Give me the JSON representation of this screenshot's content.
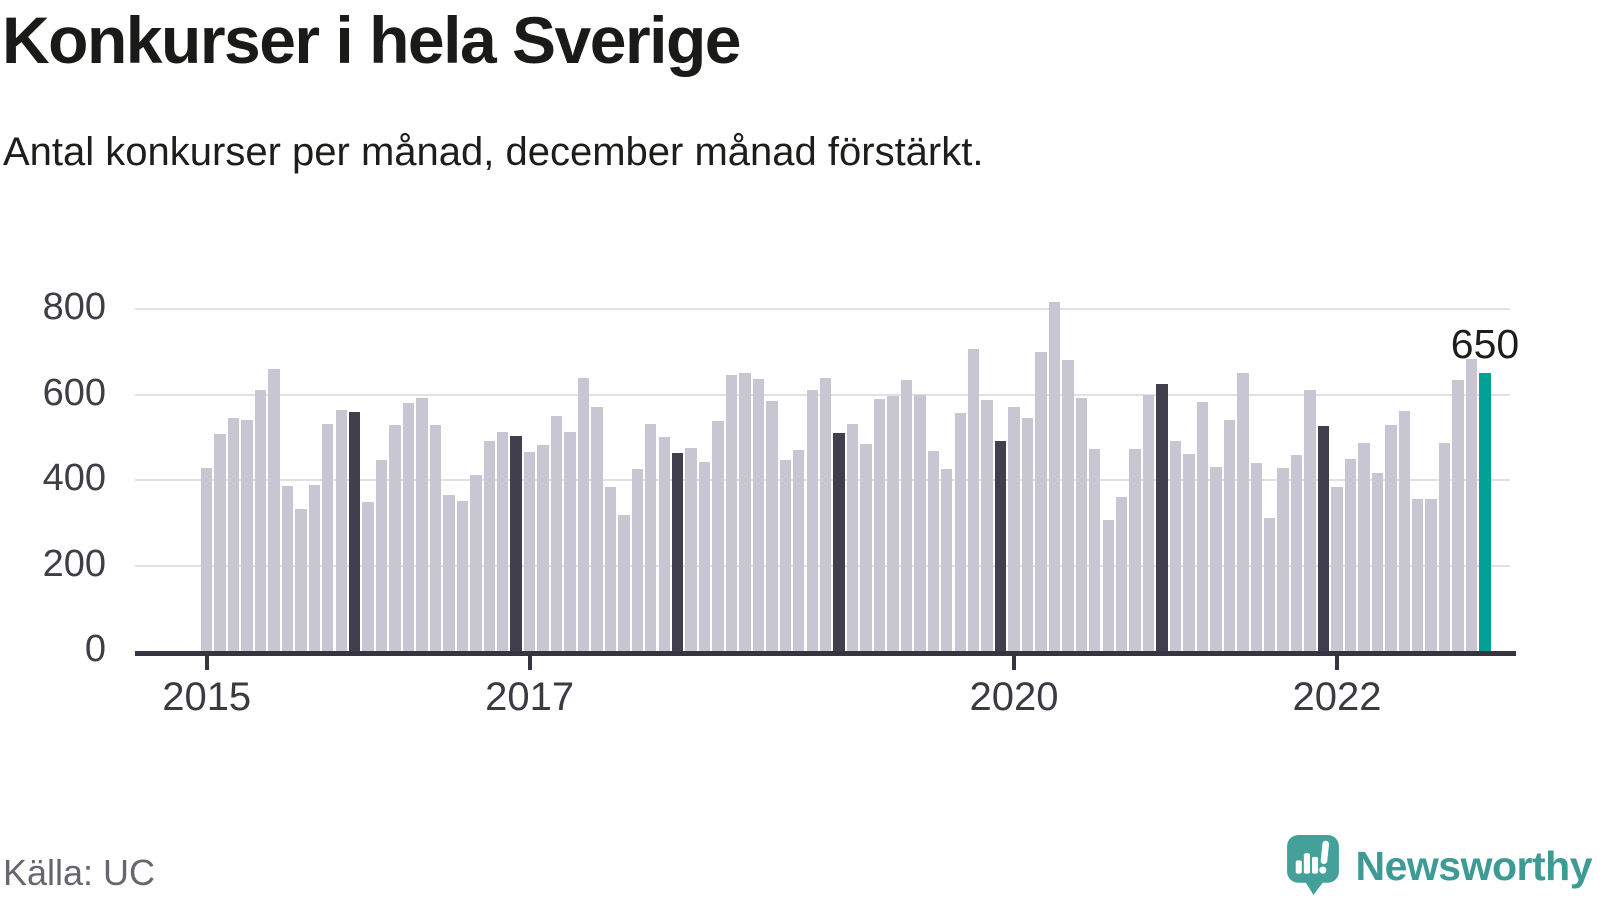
{
  "title": "Konkurser i hela Sverige",
  "subtitle": "Antal konkurser per månad, december månad förstärkt.",
  "source": "Källa: UC",
  "brand": {
    "name": "Newsworthy"
  },
  "colors": {
    "bar": "#c9c6d3",
    "bar_december": "#413f4e",
    "bar_latest": "#00a296",
    "gridline": "#e1e0e4",
    "axis": "#35343f",
    "text": "#1d1d1b",
    "muted_text": "#67666f",
    "brand_teal": "#3d9a94"
  },
  "chart_data": {
    "type": "bar",
    "title": "Konkurser i hela Sverige",
    "subtitle": "Antal konkurser per månad, december månad förstärkt.",
    "xlabel": "",
    "ylabel": "",
    "x_start": "2015-01",
    "x_end": "2022-12",
    "x_step": "1 month",
    "x_tick_labels": [
      "2015",
      "2017",
      "2020",
      "2022"
    ],
    "x_tick_month_index": [
      0,
      24,
      60,
      84
    ],
    "y_ticks": [
      0,
      200,
      400,
      600,
      800
    ],
    "ylim": [
      0,
      850
    ],
    "grid": "horizontal",
    "legend": "none",
    "highlight_rule": "december bars dark, latest bar (2022-12) teal with value label",
    "annotation": {
      "text": "650",
      "month": "2022-12",
      "value": 650
    },
    "series": [
      {
        "name": "Antal konkurser per månad",
        "values": [
          428,
          509,
          546,
          540,
          612,
          659,
          386,
          332,
          389,
          532,
          563,
          560,
          348,
          447,
          530,
          581,
          592,
          528,
          365,
          352,
          413,
          492,
          513,
          503,
          465,
          482,
          549,
          513,
          640,
          570,
          385,
          319,
          425,
          532,
          500,
          464,
          476,
          443,
          538,
          645,
          650,
          636,
          585,
          447,
          470,
          610,
          640,
          511,
          532,
          484,
          591,
          596,
          635,
          600,
          469,
          427,
          557,
          706,
          588,
          491,
          571,
          545,
          700,
          818,
          682,
          592,
          472,
          307,
          361,
          474,
          600,
          624,
          492,
          461,
          584,
          430,
          540,
          650,
          439,
          312,
          429,
          459,
          612,
          526,
          385,
          449,
          486,
          417,
          529,
          561,
          355,
          356,
          487,
          634,
          684,
          650
        ]
      }
    ]
  }
}
